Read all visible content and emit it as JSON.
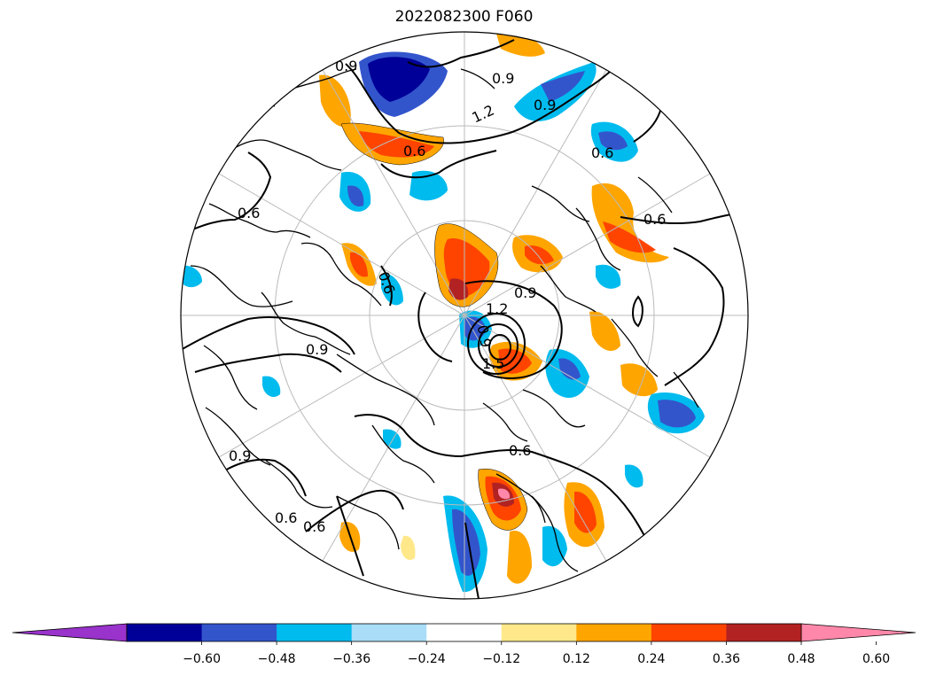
{
  "title": "2022082300 F060",
  "colorbar": {
    "ticks": [
      "−0.60",
      "−0.48",
      "−0.36",
      "−0.24",
      "−0.12",
      "0.12",
      "0.24",
      "0.36",
      "0.48",
      "0.60"
    ],
    "colors": [
      "#9933cc",
      "#000099",
      "#3355cc",
      "#00bbee",
      "#aaddf7",
      "#ffffff",
      "#ffe88a",
      "#ffa500",
      "#ff4400",
      "#b22222",
      "#ff88aa"
    ]
  },
  "contour_labels": [
    "0.9",
    "0.9",
    "1.2",
    "0.9",
    "0.6",
    "0.6",
    "0.6",
    "0.6",
    "0.6",
    "0.9",
    "1.2",
    "0.9",
    "1.5",
    "0.9",
    "0.6",
    "0.9",
    "0.6",
    "0.6"
  ],
  "projection": "north-polar-stereographic",
  "graticule": "on"
}
